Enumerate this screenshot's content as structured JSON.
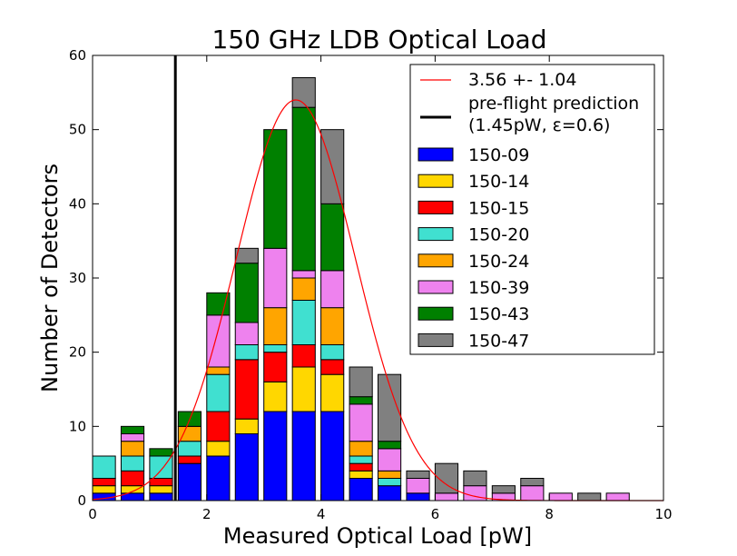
{
  "chart_data": {
    "type": "bar",
    "stacked": true,
    "title": "150 GHz LDB Optical Load",
    "xlabel": "Measured Optical Load [pW]",
    "ylabel": "Number of Detectors",
    "xlim": [
      0,
      10
    ],
    "ylim": [
      0,
      60
    ],
    "xticks": [
      "0",
      "2",
      "4",
      "6",
      "8",
      "10"
    ],
    "yticks": [
      "0",
      "10",
      "20",
      "30",
      "40",
      "50",
      "60"
    ],
    "grid": false,
    "legend_position": "top-right",
    "bin_starts": [
      0.0,
      0.5,
      1.0,
      1.5,
      2.0,
      2.5,
      3.0,
      3.5,
      4.0,
      4.5,
      5.0,
      5.5,
      6.0,
      6.5,
      7.0,
      7.5,
      8.0,
      8.5,
      9.0
    ],
    "bin_width": 0.5,
    "series": [
      {
        "name": "150-09",
        "color": "#0000ff",
        "values": [
          1,
          1,
          1,
          5,
          6,
          9,
          12,
          12,
          12,
          3,
          2,
          1,
          0,
          0,
          0,
          0,
          0,
          0,
          0
        ]
      },
      {
        "name": "150-14",
        "color": "#ffd700",
        "values": [
          1,
          1,
          1,
          0,
          2,
          2,
          4,
          6,
          5,
          1,
          0,
          0,
          0,
          0,
          0,
          0,
          0,
          0,
          0
        ]
      },
      {
        "name": "150-15",
        "color": "#ff0000",
        "values": [
          1,
          2,
          1,
          1,
          4,
          8,
          4,
          3,
          2,
          1,
          0,
          0,
          0,
          0,
          0,
          0,
          0,
          0,
          0
        ]
      },
      {
        "name": "150-20",
        "color": "#40e0d0",
        "values": [
          3,
          2,
          3,
          2,
          5,
          2,
          1,
          6,
          2,
          1,
          1,
          0,
          0,
          0,
          0,
          0,
          0,
          0,
          0
        ]
      },
      {
        "name": "150-24",
        "color": "#ffa500",
        "values": [
          0,
          2,
          0,
          2,
          1,
          0,
          5,
          3,
          5,
          2,
          1,
          0,
          0,
          0,
          0,
          0,
          0,
          0,
          0
        ]
      },
      {
        "name": "150-39",
        "color": "#ee82ee",
        "values": [
          0,
          1,
          0,
          0,
          7,
          3,
          8,
          1,
          5,
          5,
          3,
          2,
          1,
          2,
          1,
          2,
          1,
          0,
          1
        ]
      },
      {
        "name": "150-43",
        "color": "#008000",
        "values": [
          0,
          1,
          1,
          2,
          3,
          8,
          16,
          22,
          9,
          1,
          1,
          0,
          0,
          0,
          0,
          0,
          0,
          0,
          0
        ]
      },
      {
        "name": "150-47",
        "color": "#808080",
        "values": [
          0,
          0,
          0,
          0,
          0,
          2,
          0,
          4,
          10,
          4,
          9,
          1,
          4,
          2,
          1,
          1,
          0,
          1,
          0
        ]
      }
    ],
    "fit": {
      "label": "3.56 +- 1.04",
      "mean": 3.56,
      "sigma": 1.04,
      "peak": 54,
      "color": "#ff0000"
    },
    "prediction": {
      "label_line1": "pre-flight prediction",
      "label_line2": "(1.45pW, ε=0.6)",
      "x": 1.45,
      "color": "#000000"
    }
  }
}
